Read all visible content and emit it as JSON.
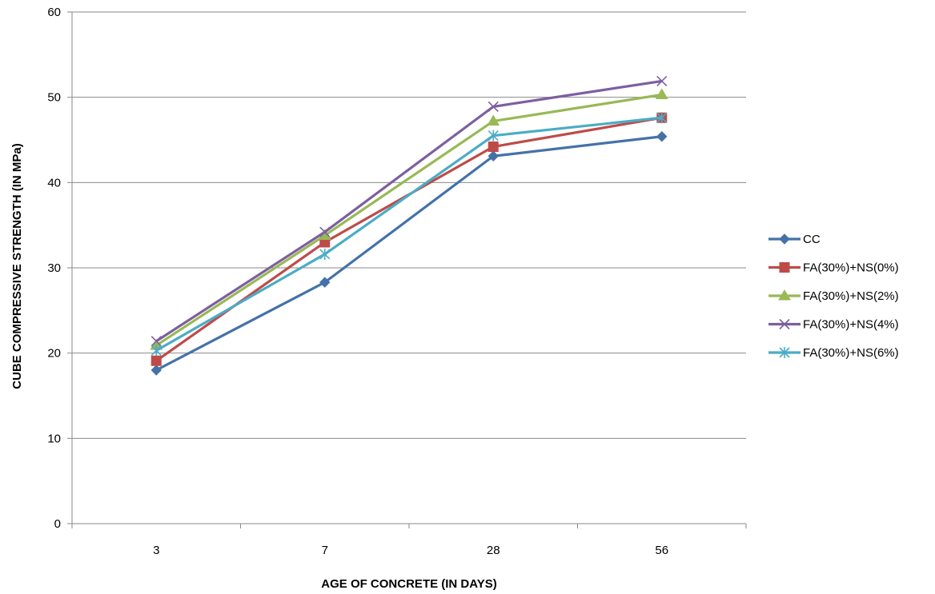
{
  "chart_data": {
    "type": "line",
    "title": "",
    "xlabel": "AGE OF CONCRETE  (IN DAYS)",
    "ylabel": "CUBE COMPRESSIVE STRENGTH  (IN MPa)",
    "categories": [
      "3",
      "7",
      "28",
      "56"
    ],
    "ylim": [
      0,
      60
    ],
    "yticks": [
      0,
      10,
      20,
      30,
      40,
      50,
      60
    ],
    "grid": "horizontal",
    "legend_position": "right",
    "series": [
      {
        "name": "CC",
        "color": "#4472A8",
        "marker": "diamond",
        "values": [
          18.0,
          28.3,
          43.1,
          45.4
        ]
      },
      {
        "name": "FA(30%)+NS(0%)",
        "color": "#BE4B48",
        "marker": "square",
        "values": [
          19.1,
          33.0,
          44.2,
          47.6
        ]
      },
      {
        "name": "FA(30%)+NS(2%)",
        "color": "#98B954",
        "marker": "triangle",
        "values": [
          20.9,
          33.8,
          47.2,
          50.3
        ]
      },
      {
        "name": "FA(30%)+NS(4%)",
        "color": "#7D5FA0",
        "marker": "x",
        "values": [
          21.4,
          34.2,
          48.9,
          51.9
        ]
      },
      {
        "name": "FA(30%)+NS(6%)",
        "color": "#4BACC6",
        "marker": "star",
        "values": [
          20.3,
          31.6,
          45.5,
          47.6
        ]
      }
    ]
  }
}
